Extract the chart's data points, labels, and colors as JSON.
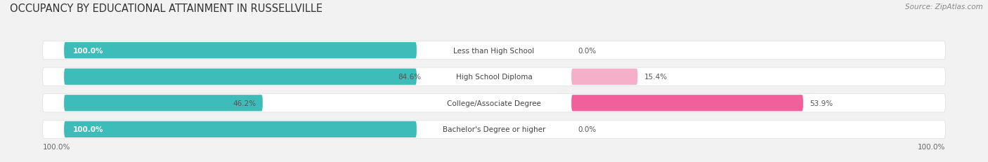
{
  "title": "OCCUPANCY BY EDUCATIONAL ATTAINMENT IN RUSSELLVILLE",
  "source": "Source: ZipAtlas.com",
  "categories": [
    "Less than High School",
    "High School Diploma",
    "College/Associate Degree",
    "Bachelor's Degree or higher"
  ],
  "owner_values": [
    100.0,
    84.6,
    46.2,
    100.0
  ],
  "renter_values": [
    0.0,
    15.4,
    53.9,
    0.0
  ],
  "owner_color": "#3dbcba",
  "renter_color": "#f0609a",
  "renter_color_light": "#f5afc8",
  "bg_color": "#f2f2f2",
  "bar_bg_color": "#e0e0e0",
  "row_bg_color": "#ffffff",
  "title_fontsize": 10.5,
  "source_fontsize": 7.5,
  "label_fontsize": 7.5,
  "value_fontsize": 7.5,
  "legend_fontsize": 8,
  "axis_label_fontsize": 7.5,
  "bar_height": 0.62,
  "figsize": [
    14.06,
    2.32
  ],
  "dpi": 100
}
